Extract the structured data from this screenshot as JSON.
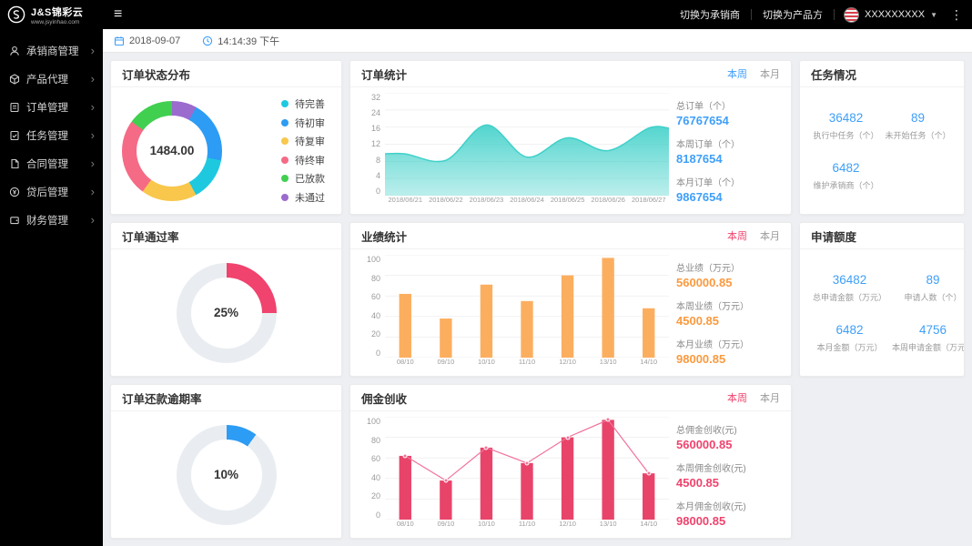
{
  "topbar": {
    "logo_title": "J&S锦彩云",
    "logo_sub": "www.jsyinhao.com",
    "switch_underwriter": "切换为承销商",
    "switch_product": "切换为产品方",
    "username": "XXXXXXXXX"
  },
  "sidebar": {
    "items": [
      {
        "label": "承销商管理"
      },
      {
        "label": "产品代理"
      },
      {
        "label": "订单管理"
      },
      {
        "label": "任务管理"
      },
      {
        "label": "合同管理"
      },
      {
        "label": "贷后管理"
      },
      {
        "label": "财务管理"
      }
    ]
  },
  "datebar": {
    "date": "2018-09-07",
    "time": "14:14:39 下午"
  },
  "cards": {
    "order_status": {
      "title": "订单状态分布"
    },
    "order_stats": {
      "title": "订单统计",
      "tab_week": "本周",
      "tab_month": "本月",
      "accent": "#3f9ff8",
      "stats": [
        {
          "label": "总订单（个）",
          "value": "76767654"
        },
        {
          "label": "本周订单（个）",
          "value": "8187654"
        },
        {
          "label": "本月订单（个）",
          "value": "9867654"
        }
      ]
    },
    "tasks": {
      "title": "任务情况",
      "stats": [
        {
          "value": "36482",
          "label": "执行中任务（个）"
        },
        {
          "value": "89",
          "label": "未开始任务（个）"
        },
        {
          "value": "6482",
          "label": "维护承销商（个）"
        }
      ]
    },
    "pass_rate": {
      "title": "订单通过率"
    },
    "performance": {
      "title": "业绩统计",
      "tab_week": "本周",
      "tab_month": "本月",
      "accent": "#f0436d",
      "stats": [
        {
          "label": "总业绩（万元）",
          "value": "560000.85"
        },
        {
          "label": "本周业绩（万元）",
          "value": "4500.85"
        },
        {
          "label": "本月业绩（万元）",
          "value": "98000.85"
        }
      ]
    },
    "quota": {
      "title": "申请额度",
      "stats": [
        {
          "value": "36482",
          "label": "总申请金额（万元）"
        },
        {
          "value": "89",
          "label": "申请人数（个）"
        },
        {
          "value": "6482",
          "label": "本月金额（万元）"
        },
        {
          "value": "4756",
          "label": "本周申请金额（万元）"
        }
      ]
    },
    "overdue": {
      "title": "订单还款逾期率"
    },
    "commission": {
      "title": "佣金创收",
      "tab_week": "本周",
      "tab_month": "本月",
      "accent": "#f0436d",
      "stats": [
        {
          "label": "总佣金创收(元)",
          "value": "560000.85"
        },
        {
          "label": "本周佣金创收(元)",
          "value": "4500.85"
        },
        {
          "label": "本月佣金创收(元)",
          "value": "98000.85"
        }
      ]
    }
  },
  "chart_data": [
    {
      "id": "order-status-donut",
      "type": "pie",
      "title": "订单状态分布",
      "center_value": "1484.00",
      "legend_position": "right",
      "segments": [
        {
          "label": "未通过",
          "color": "#9b6bce",
          "value": 8
        },
        {
          "label": "待初审",
          "color": "#2d9cf4",
          "value": 20
        },
        {
          "label": "待完善",
          "color": "#1ec9e0",
          "value": 14
        },
        {
          "label": "待复审",
          "color": "#f8c74c",
          "value": 18
        },
        {
          "label": "待终审",
          "color": "#f56a85",
          "value": 25
        },
        {
          "label": "已放款",
          "color": "#41cf50",
          "value": 15
        }
      ],
      "legend": [
        {
          "label": "待完善",
          "color": "#1ec9e0"
        },
        {
          "label": "待初审",
          "color": "#2d9cf4"
        },
        {
          "label": "待复审",
          "color": "#f8c74c"
        },
        {
          "label": "待终审",
          "color": "#f56a85"
        },
        {
          "label": "已放款",
          "color": "#41cf50"
        },
        {
          "label": "未通过",
          "color": "#9b6bce"
        }
      ]
    },
    {
      "id": "order-stats-area",
      "type": "area",
      "title": "订单统计",
      "categories": [
        "2018/06/21",
        "2018/06/22",
        "2018/06/23",
        "2018/06/24",
        "2018/06/25",
        "2018/06/26",
        "2018/06/27"
      ],
      "values": [
        13,
        11,
        22,
        12,
        18,
        14,
        21
      ],
      "ylim": [
        0,
        32
      ],
      "yticks": [
        "32",
        "24",
        "16",
        "12",
        "8",
        "4",
        "0"
      ],
      "area_color": "#3fd0c9"
    },
    {
      "id": "pass-rate-donut",
      "type": "pie",
      "title": "订单通过率",
      "center_value": "25%",
      "segments": [
        {
          "label": "通过",
          "color": "#f0436d",
          "value": 25
        },
        {
          "label": "其他",
          "color": "#e9edf1",
          "value": 75
        }
      ]
    },
    {
      "id": "performance-bar",
      "type": "bar",
      "title": "业绩统计",
      "categories": [
        "08/10",
        "09/10",
        "10/10",
        "11/10",
        "12/10",
        "13/10",
        "14/10"
      ],
      "values": [
        62,
        38,
        71,
        55,
        80,
        97,
        48
      ],
      "ylim": [
        0,
        100
      ],
      "yticks": [
        "100",
        "80",
        "60",
        "40",
        "20",
        "0"
      ],
      "bar_color": "#fcae5f"
    },
    {
      "id": "overdue-donut",
      "type": "pie",
      "title": "订单还款逾期率",
      "center_value": "10%",
      "segments": [
        {
          "label": "逾期",
          "color": "#2d9cf4",
          "value": 10
        },
        {
          "label": "其他",
          "color": "#e9edf1",
          "value": 90
        }
      ]
    },
    {
      "id": "commission-bar",
      "type": "bar",
      "title": "佣金创收",
      "categories": [
        "08/10",
        "09/10",
        "10/10",
        "11/10",
        "12/10",
        "13/10",
        "14/10"
      ],
      "values": [
        62,
        38,
        70,
        55,
        80,
        97,
        45
      ],
      "line_values": [
        62,
        38,
        70,
        55,
        80,
        97,
        45
      ],
      "ylim": [
        0,
        100
      ],
      "yticks": [
        "100",
        "80",
        "60",
        "40",
        "20",
        "0"
      ],
      "bar_color": "#e8446a",
      "line_color": "#f2729a"
    }
  ]
}
